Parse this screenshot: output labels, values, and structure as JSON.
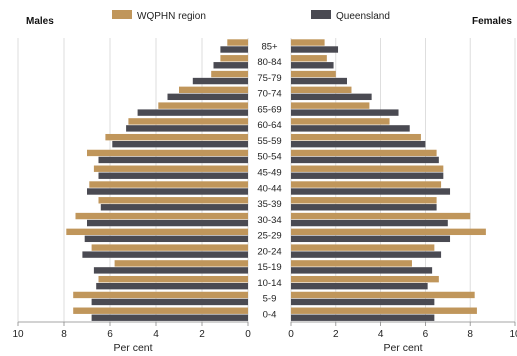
{
  "chart_data": {
    "type": "bar",
    "orientation": "horizontal",
    "layout": "population-pyramid",
    "left_panel_title": "Males",
    "right_panel_title": "Females",
    "xlabel_left": "Per cent",
    "xlabel_right": "Per cent",
    "xlim": [
      0,
      10
    ],
    "xticks_left": [
      "10",
      "8",
      "6",
      "4",
      "2",
      "0"
    ],
    "xticks_right": [
      "0",
      "2",
      "4",
      "6",
      "8",
      "10"
    ],
    "grid": true,
    "legend_position": "top-center",
    "categories": [
      "85+",
      "80-84",
      "75-79",
      "70-74",
      "65-69",
      "60-64",
      "55-59",
      "50-54",
      "45-49",
      "40-44",
      "35-39",
      "30-34",
      "25-29",
      "20-24",
      "15-19",
      "10-14",
      "5-9",
      "0-4"
    ],
    "series": [
      {
        "name": "WQPHN region",
        "color": "#c0965b",
        "males": [
          0.9,
          1.2,
          1.6,
          3.0,
          3.9,
          5.2,
          6.2,
          7.0,
          6.7,
          6.9,
          6.5,
          7.5,
          7.9,
          6.8,
          5.8,
          6.5,
          7.6,
          7.6
        ],
        "females": [
          1.5,
          1.6,
          2.0,
          2.7,
          3.5,
          4.4,
          5.8,
          6.5,
          6.8,
          6.7,
          6.5,
          8.0,
          8.7,
          6.4,
          5.4,
          6.6,
          8.2,
          8.3
        ]
      },
      {
        "name": "Queensland",
        "color": "#4a4a52",
        "males": [
          1.2,
          1.5,
          2.4,
          3.5,
          4.8,
          5.3,
          5.9,
          6.5,
          6.5,
          7.0,
          6.4,
          7.0,
          7.1,
          7.2,
          6.7,
          6.6,
          6.8,
          6.8
        ],
        "females": [
          2.1,
          1.9,
          2.5,
          3.6,
          4.8,
          5.3,
          6.0,
          6.6,
          6.8,
          7.1,
          6.5,
          7.0,
          7.1,
          6.7,
          6.3,
          6.1,
          6.4,
          6.4
        ]
      }
    ]
  }
}
